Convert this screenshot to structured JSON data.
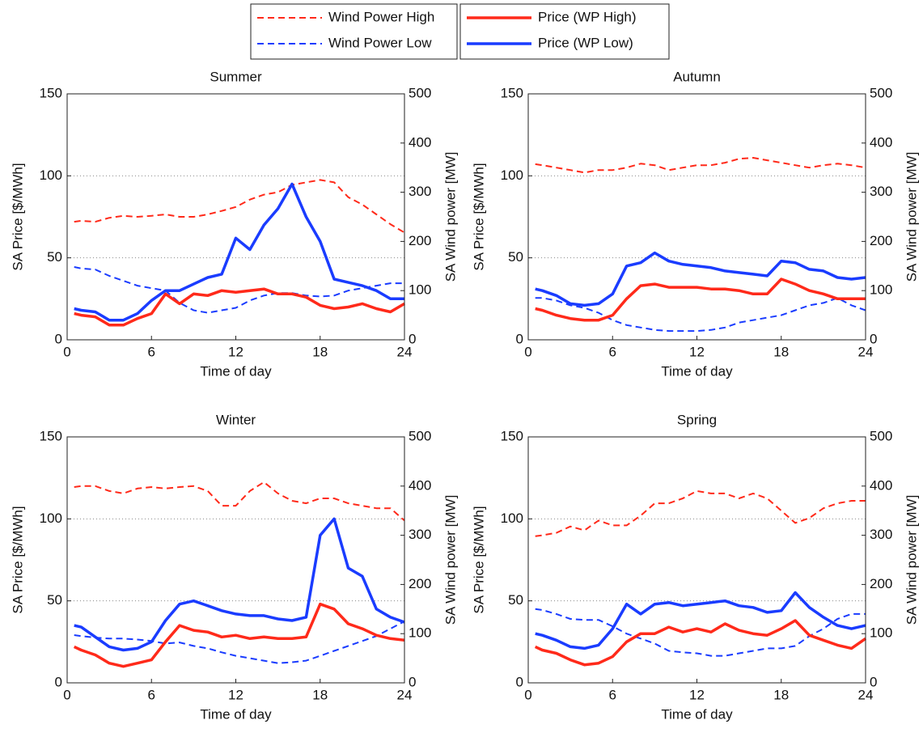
{
  "legend": [
    {
      "name": "Wind Power High",
      "color": "#ff2a1a",
      "dashed": true,
      "axis": "y2"
    },
    {
      "name": "Wind Power Low",
      "color": "#1a3cff",
      "dashed": true,
      "axis": "y2"
    },
    {
      "name": "Price (WP High)",
      "color": "#ff2a1a",
      "dashed": false,
      "axis": "y"
    },
    {
      "name": "Price (WP Low)",
      "color": "#1a3cff",
      "dashed": false,
      "axis": "y"
    }
  ],
  "chart_data": [
    {
      "type": "line",
      "title": "Summer",
      "x_label": "Time of day",
      "y_label": "SA Price [$/MWh]",
      "y2_label": "SA Wind power [MW]",
      "x": [
        0.5,
        1,
        2,
        3,
        4,
        5,
        6,
        7,
        8,
        9,
        10,
        11,
        12,
        13,
        14,
        15,
        16,
        17,
        18,
        19,
        20,
        21,
        22,
        23,
        24
      ],
      "xlim": [
        0,
        24
      ],
      "xticks": [
        0,
        6,
        12,
        18,
        24
      ],
      "ylim": [
        0,
        150
      ],
      "yticks": [
        0,
        50,
        100,
        150
      ],
      "y2lim": [
        0,
        500
      ],
      "y2ticks": [
        0,
        100,
        200,
        300,
        400,
        500
      ],
      "grid": true,
      "series": [
        {
          "values": [
            240,
            242,
            240,
            248,
            252,
            250,
            252,
            255,
            250,
            250,
            255,
            262,
            270,
            285,
            295,
            300,
            315,
            320,
            325,
            320,
            290,
            275,
            255,
            235,
            218
          ]
        },
        {
          "values": [
            148,
            145,
            143,
            130,
            120,
            110,
            105,
            100,
            75,
            60,
            55,
            60,
            65,
            80,
            90,
            95,
            95,
            90,
            88,
            90,
            100,
            105,
            110,
            115,
            115
          ]
        },
        {
          "values": [
            16,
            15,
            14,
            9,
            9,
            13,
            16,
            28,
            22,
            28,
            27,
            30,
            29,
            30,
            31,
            28,
            28,
            26,
            21,
            19,
            20,
            22,
            19,
            17,
            22
          ]
        },
        {
          "values": [
            19,
            18,
            17,
            12,
            12,
            16,
            24,
            30,
            30,
            34,
            38,
            40,
            62,
            55,
            70,
            80,
            95,
            75,
            60,
            37,
            35,
            33,
            30,
            25,
            25
          ]
        }
      ]
    },
    {
      "type": "line",
      "title": "Autumn",
      "x_label": "Time of day",
      "y_label": "SA Price [$/MWh]",
      "y2_label": "SA Wind power [MW]",
      "x": [
        0.5,
        1,
        2,
        3,
        4,
        5,
        6,
        7,
        8,
        9,
        10,
        11,
        12,
        13,
        14,
        15,
        16,
        17,
        18,
        19,
        20,
        21,
        22,
        23,
        24
      ],
      "xlim": [
        0,
        24
      ],
      "xticks": [
        0,
        6,
        12,
        18,
        24
      ],
      "ylim": [
        0,
        150
      ],
      "yticks": [
        0,
        50,
        100,
        150
      ],
      "y2lim": [
        0,
        500
      ],
      "y2ticks": [
        0,
        100,
        200,
        300,
        400,
        500
      ],
      "grid": true,
      "series": [
        {
          "values": [
            357,
            355,
            350,
            345,
            340,
            345,
            345,
            350,
            358,
            355,
            345,
            350,
            355,
            355,
            360,
            368,
            370,
            365,
            360,
            355,
            350,
            355,
            358,
            355,
            350
          ]
        },
        {
          "values": [
            85,
            85,
            80,
            70,
            65,
            55,
            40,
            30,
            25,
            20,
            18,
            18,
            18,
            20,
            25,
            35,
            40,
            45,
            50,
            60,
            70,
            75,
            85,
            70,
            60
          ]
        },
        {
          "values": [
            19,
            18,
            15,
            13,
            12,
            12,
            15,
            25,
            33,
            34,
            32,
            32,
            32,
            31,
            31,
            30,
            28,
            28,
            37,
            34,
            30,
            28,
            25,
            25,
            25
          ]
        },
        {
          "values": [
            31,
            30,
            27,
            22,
            21,
            22,
            28,
            45,
            47,
            53,
            48,
            46,
            45,
            44,
            42,
            41,
            40,
            39,
            48,
            47,
            43,
            42,
            38,
            37,
            38
          ]
        }
      ]
    },
    {
      "type": "line",
      "title": "Winter",
      "x_label": "Time of day",
      "y_label": "SA Price [$/MWh]",
      "y2_label": "SA Wind power [MW]",
      "x": [
        0.5,
        1,
        2,
        3,
        4,
        5,
        6,
        7,
        8,
        9,
        10,
        11,
        12,
        13,
        14,
        15,
        16,
        17,
        18,
        19,
        20,
        21,
        22,
        23,
        24
      ],
      "xlim": [
        0,
        24
      ],
      "xticks": [
        0,
        6,
        12,
        18,
        24
      ],
      "ylim": [
        0,
        150
      ],
      "yticks": [
        0,
        50,
        100,
        150
      ],
      "y2lim": [
        0,
        500
      ],
      "y2ticks": [
        0,
        100,
        200,
        300,
        400,
        500
      ],
      "grid": true,
      "series": [
        {
          "values": [
            398,
            400,
            400,
            390,
            385,
            395,
            398,
            395,
            398,
            400,
            390,
            360,
            360,
            390,
            408,
            385,
            370,
            365,
            375,
            375,
            365,
            360,
            355,
            355,
            330
          ]
        },
        {
          "values": [
            97,
            95,
            92,
            90,
            90,
            88,
            85,
            80,
            82,
            75,
            70,
            62,
            55,
            50,
            45,
            40,
            42,
            45,
            55,
            65,
            75,
            85,
            95,
            110,
            125
          ]
        },
        {
          "values": [
            22,
            20,
            17,
            12,
            10,
            12,
            14,
            25,
            35,
            32,
            31,
            28,
            29,
            27,
            28,
            27,
            27,
            28,
            48,
            45,
            36,
            33,
            29,
            27,
            26
          ]
        },
        {
          "values": [
            35,
            34,
            28,
            22,
            20,
            21,
            25,
            38,
            48,
            50,
            47,
            44,
            42,
            41,
            41,
            39,
            38,
            40,
            90,
            100,
            70,
            65,
            45,
            40,
            37
          ]
        }
      ]
    },
    {
      "type": "line",
      "title": "Spring",
      "x_label": "Time of day",
      "y_label": "SA Price [$/MWh]",
      "y2_label": "SA Wind power [MW]",
      "x": [
        0.5,
        1,
        2,
        3,
        4,
        5,
        6,
        7,
        8,
        9,
        10,
        11,
        12,
        13,
        14,
        15,
        16,
        17,
        18,
        19,
        20,
        21,
        22,
        23,
        24
      ],
      "xlim": [
        0,
        24
      ],
      "xticks": [
        0,
        6,
        12,
        18,
        24
      ],
      "ylim": [
        0,
        150
      ],
      "yticks": [
        0,
        50,
        100,
        150
      ],
      "y2lim": [
        0,
        500
      ],
      "y2ticks": [
        0,
        100,
        200,
        300,
        400,
        500
      ],
      "grid": true,
      "series": [
        {
          "values": [
            298,
            300,
            305,
            318,
            310,
            330,
            320,
            320,
            340,
            365,
            365,
            375,
            390,
            385,
            385,
            375,
            385,
            375,
            350,
            325,
            335,
            355,
            365,
            370,
            370
          ]
        },
        {
          "values": [
            150,
            148,
            140,
            130,
            128,
            128,
            115,
            100,
            90,
            80,
            65,
            62,
            60,
            55,
            55,
            60,
            65,
            70,
            70,
            75,
            95,
            110,
            130,
            140,
            140
          ]
        },
        {
          "values": [
            22,
            20,
            18,
            14,
            11,
            12,
            16,
            25,
            30,
            30,
            34,
            31,
            33,
            31,
            36,
            32,
            30,
            29,
            33,
            38,
            29,
            26,
            23,
            21,
            27
          ]
        },
        {
          "values": [
            30,
            29,
            26,
            22,
            21,
            23,
            33,
            48,
            42,
            48,
            49,
            47,
            48,
            49,
            50,
            47,
            46,
            43,
            44,
            55,
            46,
            40,
            35,
            33,
            35
          ]
        }
      ]
    }
  ]
}
